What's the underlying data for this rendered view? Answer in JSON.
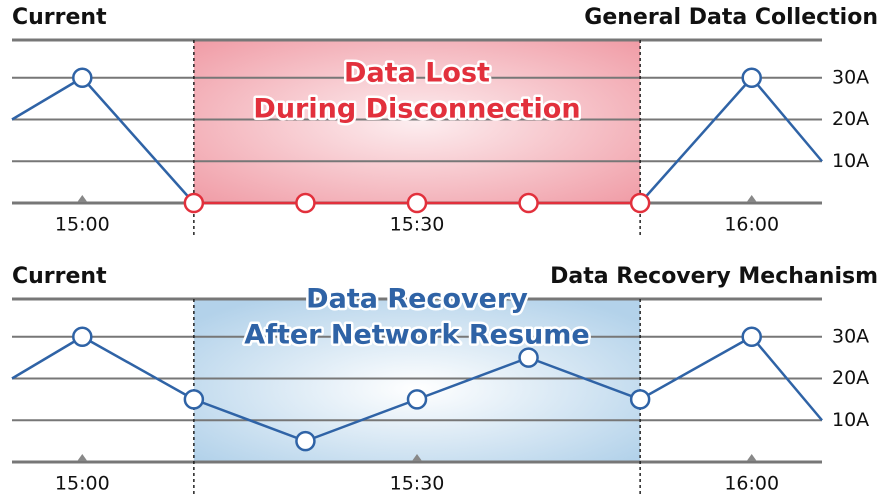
{
  "chart_data": [
    {
      "type": "line",
      "title": "Current",
      "subtitle": "General Data Collection",
      "x": [
        -6.3,
        0,
        10,
        20,
        30,
        40,
        50,
        60,
        66.3
      ],
      "values": [
        20,
        30,
        0,
        0,
        0,
        0,
        0,
        30,
        10
      ],
      "color": "#2f63a6",
      "xlim": [
        -6.3,
        66.3
      ],
      "xticks": [
        {
          "value": 0,
          "label": "15:00"
        },
        {
          "value": 30,
          "label": "15:30"
        },
        {
          "value": 60,
          "label": "16:00"
        }
      ],
      "ylim": [
        0,
        40
      ],
      "yticks": [
        {
          "value": 10,
          "label": "10A"
        },
        {
          "value": 20,
          "label": "20A"
        },
        {
          "value": 30,
          "label": "30A"
        }
      ],
      "grid": true,
      "highlight": {
        "from": 10,
        "to": 50,
        "color": "#e2303c",
        "text": [
          "Data Lost",
          "During Disconnection"
        ],
        "style": "red"
      }
    },
    {
      "type": "line",
      "title": "Current",
      "subtitle": "Data Recovery Mechanism",
      "x": [
        -6.3,
        0,
        10,
        20,
        30,
        40,
        50,
        60,
        66.3
      ],
      "values": [
        20,
        30,
        15,
        5,
        15,
        25,
        15,
        30,
        10
      ],
      "color": "#2f63a6",
      "xlim": [
        -6.3,
        66.3
      ],
      "xticks": [
        {
          "value": 0,
          "label": "15:00"
        },
        {
          "value": 30,
          "label": "15:30"
        },
        {
          "value": 60,
          "label": "16:00"
        }
      ],
      "ylim": [
        0,
        40
      ],
      "yticks": [
        {
          "value": 10,
          "label": "10A"
        },
        {
          "value": 20,
          "label": "20A"
        },
        {
          "value": 30,
          "label": "30A"
        }
      ],
      "grid": true,
      "highlight": {
        "from": 10,
        "to": 50,
        "color": "#2f63a6",
        "text": [
          "Data Recovery",
          "After Network Resume"
        ],
        "style": "blue"
      }
    }
  ]
}
